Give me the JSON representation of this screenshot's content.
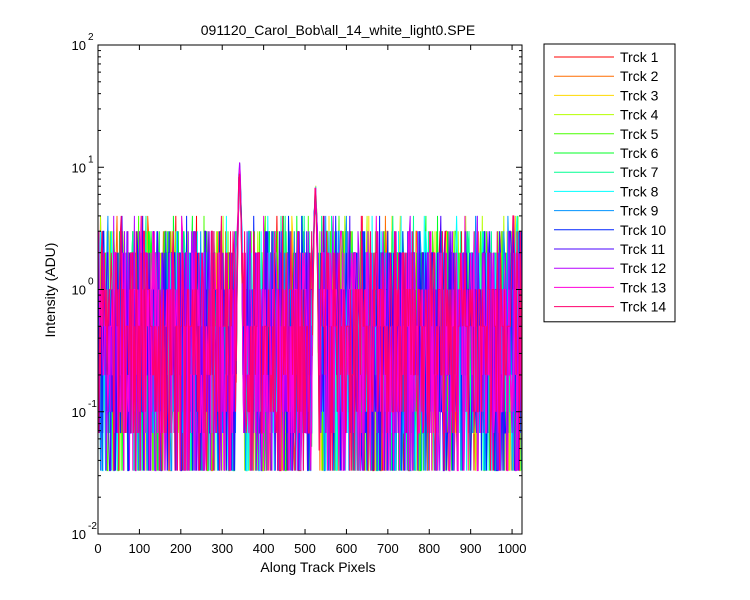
{
  "chart_data": {
    "type": "line",
    "title": "091120_Carol_Bob\\all_14_white_light0.SPE",
    "xlabel": "Along Track Pixels",
    "ylabel": "Intensity (ADU)",
    "xlim": [
      0,
      1024
    ],
    "ylim": [
      0.01,
      100
    ],
    "yscale": "log",
    "grid": false,
    "legend_position": "outside-right",
    "x_ticks": [
      "0",
      "100",
      "200",
      "300",
      "400",
      "500",
      "600",
      "700",
      "800",
      "900",
      "1000"
    ],
    "y_ticks": [
      {
        "base": "10",
        "exp": "-2"
      },
      {
        "base": "10",
        "exp": "-1"
      },
      {
        "base": "10",
        "exp": "0"
      },
      {
        "base": "10",
        "exp": "1"
      },
      {
        "base": "10",
        "exp": "2"
      }
    ],
    "noise_levels_adu": [
      0.033,
      0.067,
      0.1,
      0.2,
      0.5,
      1,
      2,
      3,
      4
    ],
    "peaks": [
      {
        "x": 342,
        "y": 11
      },
      {
        "x": 525,
        "y": 7.5
      }
    ],
    "series": [
      {
        "name": "Trck 1",
        "color": "#FF0000"
      },
      {
        "name": "Trck 2",
        "color": "#FF6D00"
      },
      {
        "name": "Trck 3",
        "color": "#FFDA00"
      },
      {
        "name": "Trck 4",
        "color": "#B6FF00"
      },
      {
        "name": "Trck 5",
        "color": "#49FF00"
      },
      {
        "name": "Trck 6",
        "color": "#00FF24"
      },
      {
        "name": "Trck 7",
        "color": "#00FF92"
      },
      {
        "name": "Trck 8",
        "color": "#00FFFF"
      },
      {
        "name": "Trck 9",
        "color": "#0092FF"
      },
      {
        "name": "Trck 10",
        "color": "#0024FF"
      },
      {
        "name": "Trck 11",
        "color": "#4900FF"
      },
      {
        "name": "Trck 12",
        "color": "#B600FF"
      },
      {
        "name": "Trck 13",
        "color": "#FF00DA"
      },
      {
        "name": "Trck 14",
        "color": "#FF006D"
      }
    ]
  }
}
